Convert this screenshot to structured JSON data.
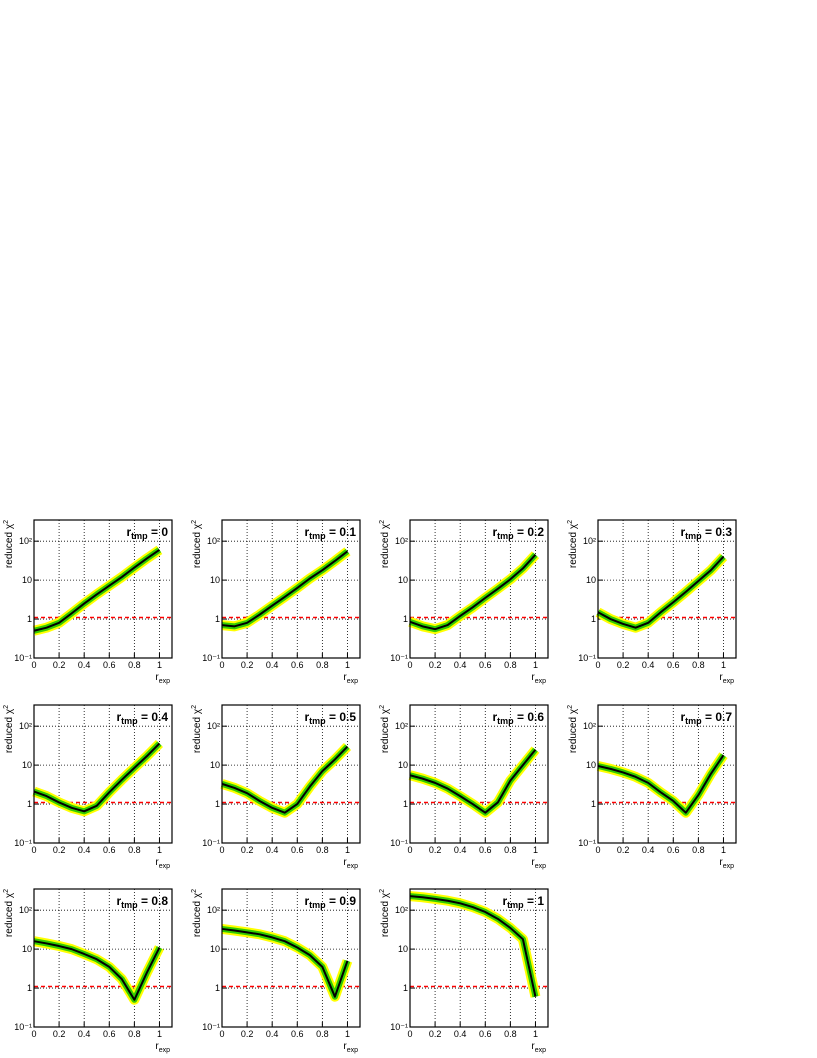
{
  "chart_data": [
    {
      "type": "line",
      "annotation": [
        "r",
        "tmp",
        " = 0"
      ],
      "xlabel": [
        "r",
        "exp"
      ],
      "ylabel": [
        "reduced χ",
        "2"
      ],
      "x": [
        0,
        0.1,
        0.2,
        0.3,
        0.4,
        0.5,
        0.6,
        0.7,
        0.8,
        0.9,
        1
      ],
      "series": [
        {
          "color": "#000000",
          "values": [
            0.5,
            0.6,
            0.8,
            1.4,
            2.5,
            4.3,
            7.2,
            12,
            21,
            36,
            60
          ]
        }
      ],
      "band_colors": [
        "#ffff00",
        "#33cc00"
      ],
      "hline": {
        "value": 1.1,
        "color": "#ff0000"
      },
      "ylog": true,
      "grid": true,
      "xlim": [
        0,
        1.1
      ],
      "xticks": [
        0,
        0.2,
        0.4,
        0.6,
        0.8,
        1
      ],
      "ylim": [
        0.1,
        350
      ],
      "yticks": [
        {
          "value": 0.1,
          "label": "10⁻¹"
        },
        1,
        10,
        {
          "value": 100,
          "label": "10²"
        }
      ]
    },
    {
      "type": "line",
      "annotation": [
        "r",
        "tmp",
        " = 0.1"
      ],
      "xlabel": [
        "r",
        "exp"
      ],
      "ylabel": [
        "reduced χ",
        "2"
      ],
      "x": [
        0,
        0.1,
        0.2,
        0.3,
        0.4,
        0.5,
        0.6,
        0.7,
        0.8,
        0.9,
        1
      ],
      "series": [
        {
          "color": "#000000",
          "values": [
            0.7,
            0.65,
            0.8,
            1.3,
            2.2,
            3.7,
            6.3,
            11,
            18,
            31,
            55
          ]
        }
      ],
      "band_colors": [
        "#ffff00",
        "#33cc00"
      ],
      "hline": {
        "value": 1.1,
        "color": "#ff0000"
      },
      "ylog": true,
      "grid": true,
      "xlim": [
        0,
        1.1
      ],
      "xticks": [
        0,
        0.2,
        0.4,
        0.6,
        0.8,
        1
      ],
      "ylim": [
        0.1,
        350
      ],
      "yticks": [
        {
          "value": 0.1,
          "label": "10⁻¹"
        },
        1,
        10,
        {
          "value": 100,
          "label": "10²"
        }
      ]
    },
    {
      "type": "line",
      "annotation": [
        "r",
        "tmp",
        " = 0.2"
      ],
      "xlabel": [
        "r",
        "exp"
      ],
      "ylabel": [
        "reduced χ",
        "2"
      ],
      "x": [
        0,
        0.1,
        0.2,
        0.3,
        0.4,
        0.5,
        0.6,
        0.7,
        0.8,
        0.9,
        1
      ],
      "series": [
        {
          "color": "#000000",
          "values": [
            0.85,
            0.65,
            0.55,
            0.7,
            1.2,
            2,
            3.5,
            6,
            10.5,
            20,
            45
          ]
        }
      ],
      "band_colors": [
        "#ffff00",
        "#33cc00"
      ],
      "hline": {
        "value": 1.1,
        "color": "#ff0000"
      },
      "ylog": true,
      "grid": true,
      "xlim": [
        0,
        1.1
      ],
      "xticks": [
        0,
        0.2,
        0.4,
        0.6,
        0.8,
        1
      ],
      "ylim": [
        0.1,
        350
      ],
      "yticks": [
        {
          "value": 0.1,
          "label": "10⁻¹"
        },
        1,
        10,
        {
          "value": 100,
          "label": "10²"
        }
      ]
    },
    {
      "type": "line",
      "annotation": [
        "r",
        "tmp",
        " = 0.3"
      ],
      "xlabel": [
        "r",
        "exp"
      ],
      "ylabel": [
        "reduced χ",
        "2"
      ],
      "x": [
        0,
        0.1,
        0.2,
        0.3,
        0.4,
        0.5,
        0.6,
        0.7,
        0.8,
        0.9,
        1
      ],
      "series": [
        {
          "color": "#000000",
          "values": [
            1.5,
            1.0,
            0.75,
            0.6,
            0.8,
            1.5,
            2.7,
            5,
            9.5,
            18,
            40
          ]
        }
      ],
      "band_colors": [
        "#ffff00",
        "#33cc00"
      ],
      "hline": {
        "value": 1.1,
        "color": "#ff0000"
      },
      "ylog": true,
      "grid": true,
      "xlim": [
        0,
        1.1
      ],
      "xticks": [
        0,
        0.2,
        0.4,
        0.6,
        0.8,
        1
      ],
      "ylim": [
        0.1,
        350
      ],
      "yticks": [
        {
          "value": 0.1,
          "label": "10⁻¹"
        },
        1,
        10,
        {
          "value": 100,
          "label": "10²"
        }
      ]
    },
    {
      "type": "line",
      "annotation": [
        "r",
        "tmp",
        " = 0.4"
      ],
      "xlabel": [
        "r",
        "exp"
      ],
      "ylabel": [
        "reduced χ",
        "2"
      ],
      "x": [
        0,
        0.1,
        0.2,
        0.3,
        0.4,
        0.5,
        0.6,
        0.7,
        0.8,
        0.9,
        1
      ],
      "series": [
        {
          "color": "#000000",
          "values": [
            2.1,
            1.6,
            1.1,
            0.8,
            0.65,
            0.9,
            2,
            4.2,
            8.5,
            17,
            36
          ]
        }
      ],
      "band_colors": [
        "#ffff00",
        "#33cc00"
      ],
      "hline": {
        "value": 1.1,
        "color": "#ff0000"
      },
      "ylog": true,
      "grid": true,
      "xlim": [
        0,
        1.1
      ],
      "xticks": [
        0,
        0.2,
        0.4,
        0.6,
        0.8,
        1
      ],
      "ylim": [
        0.1,
        350
      ],
      "yticks": [
        {
          "value": 0.1,
          "label": "10⁻¹"
        },
        1,
        10,
        {
          "value": 100,
          "label": "10²"
        }
      ]
    },
    {
      "type": "line",
      "annotation": [
        "r",
        "tmp",
        " = 0.5"
      ],
      "xlabel": [
        "r",
        "exp"
      ],
      "ylabel": [
        "reduced χ",
        "2"
      ],
      "x": [
        0,
        0.1,
        0.2,
        0.3,
        0.4,
        0.5,
        0.6,
        0.7,
        0.8,
        0.9,
        1
      ],
      "series": [
        {
          "color": "#000000",
          "values": [
            3.3,
            2.6,
            1.9,
            1.2,
            0.8,
            0.6,
            1,
            2.8,
            7,
            14,
            30
          ]
        }
      ],
      "band_colors": [
        "#ffff00",
        "#33cc00"
      ],
      "hline": {
        "value": 1.1,
        "color": "#ff0000"
      },
      "ylog": true,
      "grid": true,
      "xlim": [
        0,
        1.1
      ],
      "xticks": [
        0,
        0.2,
        0.4,
        0.6,
        0.8,
        1
      ],
      "ylim": [
        0.1,
        350
      ],
      "yticks": [
        {
          "value": 0.1,
          "label": "10⁻¹"
        },
        1,
        10,
        {
          "value": 100,
          "label": "10²"
        }
      ]
    },
    {
      "type": "line",
      "annotation": [
        "r",
        "tmp",
        " = 0.6"
      ],
      "xlabel": [
        "r",
        "exp"
      ],
      "ylabel": [
        "reduced χ",
        "2"
      ],
      "x": [
        0,
        0.1,
        0.2,
        0.3,
        0.4,
        0.5,
        0.6,
        0.7,
        0.8,
        0.9,
        1
      ],
      "series": [
        {
          "color": "#000000",
          "values": [
            5.5,
            4.5,
            3.5,
            2.5,
            1.6,
            1,
            0.6,
            1.1,
            4,
            10,
            25
          ]
        }
      ],
      "band_colors": [
        "#ffff00",
        "#33cc00"
      ],
      "hline": {
        "value": 1.1,
        "color": "#ff0000"
      },
      "ylog": true,
      "grid": true,
      "xlim": [
        0,
        1.1
      ],
      "xticks": [
        0,
        0.2,
        0.4,
        0.6,
        0.8,
        1
      ],
      "ylim": [
        0.1,
        350
      ],
      "yticks": [
        {
          "value": 0.1,
          "label": "10⁻¹"
        },
        1,
        10,
        {
          "value": 100,
          "label": "10²"
        }
      ]
    },
    {
      "type": "line",
      "annotation": [
        "r",
        "tmp",
        " = 0.7"
      ],
      "xlabel": [
        "r",
        "exp"
      ],
      "ylabel": [
        "reduced χ",
        "2"
      ],
      "x": [
        0,
        0.1,
        0.2,
        0.3,
        0.4,
        0.5,
        0.6,
        0.7,
        0.8,
        0.9,
        1
      ],
      "series": [
        {
          "color": "#000000",
          "values": [
            9.5,
            8,
            6.5,
            5,
            3.5,
            2,
            1.2,
            0.6,
            1.7,
            6,
            18
          ]
        }
      ],
      "band_colors": [
        "#ffff00",
        "#33cc00"
      ],
      "hline": {
        "value": 1.1,
        "color": "#ff0000"
      },
      "ylog": true,
      "grid": true,
      "xlim": [
        0,
        1.1
      ],
      "xticks": [
        0,
        0.2,
        0.4,
        0.6,
        0.8,
        1
      ],
      "ylim": [
        0.1,
        350
      ],
      "yticks": [
        {
          "value": 0.1,
          "label": "10⁻¹"
        },
        1,
        10,
        {
          "value": 100,
          "label": "10²"
        }
      ]
    },
    {
      "type": "line",
      "annotation": [
        "r",
        "tmp",
        " = 0.8"
      ],
      "xlabel": [
        "r",
        "exp"
      ],
      "ylabel": [
        "reduced χ",
        "2"
      ],
      "x": [
        0,
        0.1,
        0.2,
        0.3,
        0.4,
        0.5,
        0.6,
        0.7,
        0.8,
        0.9,
        1
      ],
      "series": [
        {
          "color": "#000000",
          "values": [
            16,
            14,
            12,
            10,
            7.5,
            5.5,
            3.5,
            1.7,
            0.5,
            2.5,
            11
          ]
        }
      ],
      "band_colors": [
        "#ffff00",
        "#33cc00"
      ],
      "hline": {
        "value": 1.1,
        "color": "#ff0000"
      },
      "ylog": true,
      "grid": true,
      "xlim": [
        0,
        1.1
      ],
      "xticks": [
        0,
        0.2,
        0.4,
        0.6,
        0.8,
        1
      ],
      "ylim": [
        0.1,
        350
      ],
      "yticks": [
        {
          "value": 0.1,
          "label": "10⁻¹"
        },
        1,
        10,
        {
          "value": 100,
          "label": "10²"
        }
      ]
    },
    {
      "type": "line",
      "annotation": [
        "r",
        "tmp",
        " = 0.9"
      ],
      "xlabel": [
        "r",
        "exp"
      ],
      "ylabel": [
        "reduced χ",
        "2"
      ],
      "x": [
        0,
        0.1,
        0.2,
        0.3,
        0.4,
        0.5,
        0.6,
        0.7,
        0.8,
        0.9,
        1
      ],
      "series": [
        {
          "color": "#000000",
          "values": [
            33,
            30,
            27,
            24,
            20,
            16,
            11,
            7,
            3.5,
            0.6,
            5
          ]
        }
      ],
      "band_colors": [
        "#ffff00",
        "#33cc00"
      ],
      "hline": {
        "value": 1.1,
        "color": "#ff0000"
      },
      "ylog": true,
      "grid": true,
      "xlim": [
        0,
        1.1
      ],
      "xticks": [
        0,
        0.2,
        0.4,
        0.6,
        0.8,
        1
      ],
      "ylim": [
        0.1,
        350
      ],
      "yticks": [
        {
          "value": 0.1,
          "label": "10⁻¹"
        },
        1,
        10,
        {
          "value": 100,
          "label": "10²"
        }
      ]
    },
    {
      "type": "line",
      "annotation": [
        "r",
        "tmp",
        " = 1"
      ],
      "xlabel": [
        "r",
        "exp"
      ],
      "ylabel": [
        "reduced χ",
        "2"
      ],
      "x": [
        0,
        0.1,
        0.2,
        0.3,
        0.4,
        0.5,
        0.6,
        0.7,
        0.8,
        0.9,
        1
      ],
      "series": [
        {
          "color": "#000000",
          "values": [
            230,
            215,
            195,
            175,
            150,
            120,
            90,
            60,
            35,
            18,
            0.6
          ]
        }
      ],
      "band_colors": [
        "#ffff00",
        "#33cc00"
      ],
      "hline": {
        "value": 1.1,
        "color": "#ff0000"
      },
      "ylog": true,
      "grid": true,
      "xlim": [
        0,
        1.1
      ],
      "xticks": [
        0,
        0.2,
        0.4,
        0.6,
        0.8,
        1
      ],
      "ylim": [
        0.1,
        350
      ],
      "yticks": [
        {
          "value": 0.1,
          "label": "10⁻¹"
        },
        1,
        10,
        {
          "value": 100,
          "label": "10²"
        }
      ]
    }
  ]
}
